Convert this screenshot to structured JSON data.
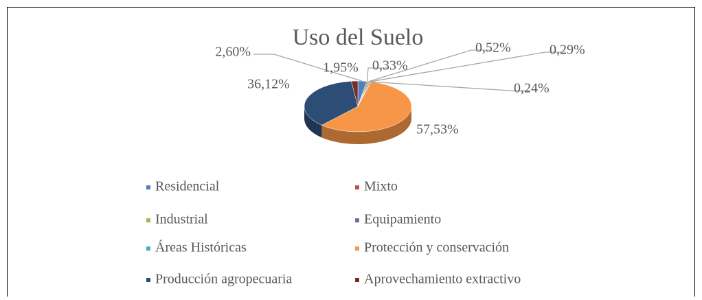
{
  "chart_data": {
    "type": "pie",
    "title": "Uso del Suelo",
    "categories": [
      "Residencial",
      "Mixto",
      "Industrial",
      "Equipamiento",
      "Áreas Históricas",
      "Protección y conservación",
      "Producción agropecuaria",
      "Aprovechamiento extractivo"
    ],
    "values": [
      2.6,
      0.33,
      0.52,
      0.29,
      0.24,
      57.53,
      36.12,
      1.95
    ],
    "value_labels": [
      "2,60%",
      "0,33%",
      "0,52%",
      "0,29%",
      "0,24%",
      "57,53%",
      "36,12%",
      "1,95%"
    ],
    "colors": [
      "#4f81bd",
      "#c0504d",
      "#9bbb59",
      "#8064a2",
      "#4bacc6",
      "#f79646",
      "#2c4d75",
      "#772c2a"
    ],
    "legend": "bottom"
  }
}
